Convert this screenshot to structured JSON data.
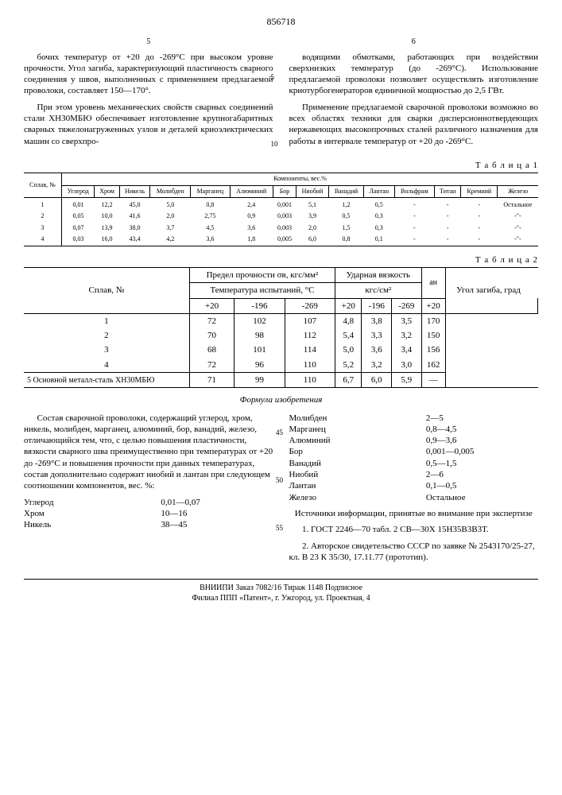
{
  "docnum": "856718",
  "col_left_num": "5",
  "col_right_num": "6",
  "para_l1": "бочих температур от +20 до -269°С при высоком уровне прочности. Угол загиба, характеризующий пластичность сварного соединения у швов, выполненных с применением предлагаемой проволоки, составляет 150—170°.",
  "para_l2": "При этом уровень механических свойств сварных соединений стали ХН30МБЮ обеспечивает изготовление крупногабаритных сварных тяжелонагруженных узлов и деталей криоэлектрических машин со сверхпро-",
  "para_r1": "водящими обмотками, работающих при воздействии сверхнизких температур (до -269°С). Использование предлагаемой проволоки позволяет осуществлять изготовление криотурбогенераторов единичной мощностью до 2,5 ГВт.",
  "para_r2": "Применение предлагаемой сварочной проволоки возможно во всех областях техники для сварки дисперсионнотвердеющих нержавеющих высокопрочных сталей различного назначения для работы в интервале температур от +20 до -269°С.",
  "t1_label": "Т а б л и ц а 1",
  "t1_group": "Компоненты, вес.%",
  "t1_h": [
    "Сплав, №",
    "Углерод",
    "Хром",
    "Никель",
    "Молибден",
    "Марганец",
    "Алюминий",
    "Бор",
    "Ниобий",
    "Ванадий",
    "Лантан",
    "Вольфрам",
    "Титан",
    "Кремний",
    "Железо"
  ],
  "t1_rows": [
    [
      "1",
      "0,01",
      "12,2",
      "45,0",
      "5,0",
      "0,8",
      "2,4",
      "0,001",
      "5,1",
      "1,2",
      "0,5",
      "-",
      "-",
      "-",
      "Остальное"
    ],
    [
      "2",
      "0,05",
      "10,0",
      "41,6",
      "2,0",
      "2,75",
      "0,9",
      "0,003",
      "3,9",
      "0,5",
      "0,3",
      "-",
      "-",
      "-",
      "-\"-"
    ],
    [
      "3",
      "0,07",
      "13,9",
      "38,0",
      "3,7",
      "4,5",
      "3,6",
      "0,003",
      "2,0",
      "1,5",
      "0,3",
      "-",
      "-",
      "-",
      "-\"-"
    ],
    [
      "4",
      "0,03",
      "16,0",
      "43,4",
      "4,2",
      "3,6",
      "1,8",
      "0,005",
      "6,0",
      "0,8",
      "0,1",
      "-",
      "-",
      "-",
      "-\"-"
    ]
  ],
  "t2_label": "Т а б л и ц а  2",
  "t2_h1a": "Предел прочности σв, кгс/мм²",
  "t2_h1b": "Ударная вязкость",
  "t2_h1c": "Угол загиба, град",
  "t2_h2": "Температура испытаний, °C",
  "t2_h3": "кгс/см²",
  "t2_left": "Сплав, №",
  "t2_ah": "aн",
  "t2_temps": [
    "+20",
    "-196",
    "-269",
    "+20",
    "-196",
    "-269",
    "+20"
  ],
  "t2_rows": [
    [
      "1",
      "72",
      "102",
      "107",
      "4,8",
      "3,8",
      "3,5",
      "170"
    ],
    [
      "2",
      "70",
      "98",
      "112",
      "5,4",
      "3,3",
      "3,2",
      "150"
    ],
    [
      "3",
      "68",
      "101",
      "114",
      "5,0",
      "3,6",
      "3,4",
      "156"
    ],
    [
      "4",
      "72",
      "96",
      "110",
      "5,2",
      "3,2",
      "3,0",
      "162"
    ]
  ],
  "t2_row5_label": "5 Основной металл-сталь ХН30МБЮ",
  "t2_row5": [
    "71",
    "99",
    "110",
    "6,7",
    "6,0",
    "5,9",
    "—"
  ],
  "formula_title": "Формула изобретения",
  "formula_text": "Состав сварочной проволоки, содержащий углерод, хром, никель, молибден, марганец, алюминий, бор, ванадий, железо, отличающийся тем, что, с целью повышения пластичности, вязкости сварного шва преимущественно при температурах от +20 до -269°С и повышения прочности при данных температурах, состав дополнительно содержит ниобий и лантан при следующем соотношении компонентов, вес. %:",
  "comp_left": {
    "names": [
      "Углерод",
      "Хром",
      "Никель"
    ],
    "vals": [
      "0,01—0,07",
      "10—16",
      "38—45"
    ]
  },
  "comp_right": {
    "names": [
      "Молибден",
      "Марганец",
      "Алюминий",
      "Бор",
      "Ванадий",
      "Ниобий",
      "Лантан",
      "Железо"
    ],
    "vals": [
      "2—5",
      "0,8—4,5",
      "0,9—3,6",
      "0,001—0,005",
      "0,5—1,5",
      "2—6",
      "0,1—0,5",
      "Остальное"
    ]
  },
  "sources_title": "Источники информации, принятые во внимание при экспертизе",
  "src1": "1. ГОСТ 2246—70 табл. 2 СВ—30Х 15Н35В3В3Т.",
  "src2": "2. Авторское свидетельство СССР по заявке № 2543170/25-27, кл. В 23 К 35/30, 17.11.77 (прототип).",
  "footer1": "ВНИИПИ        Заказ 7082/16        Тираж 1148        Подписное",
  "footer2": "Филиал ППП «Патент», г. Ужгород, ул. Проектная, 4",
  "ln5": "5",
  "ln10": "10",
  "ln45": "45",
  "ln50": "50",
  "ln55": "55"
}
